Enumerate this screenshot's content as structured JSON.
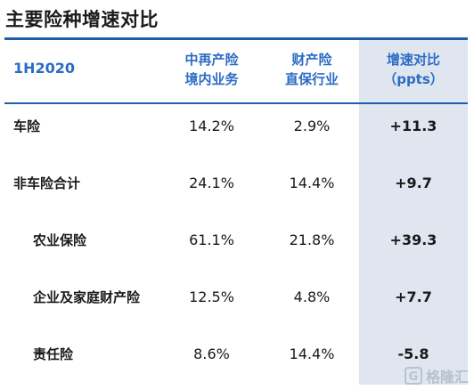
{
  "title": "主要险种增速对比",
  "header": {
    "period": "1H2020",
    "col1_line1": "中再产险",
    "col1_line2": "境内业务",
    "col2_line1": "财产险",
    "col2_line2": "直保行业",
    "col3_line1": "增速对比",
    "col3_line2": "（ppts）"
  },
  "rows": [
    {
      "label": "车险",
      "v1": "14.2%",
      "v2": "2.9%",
      "v3": "+11.3"
    },
    {
      "label": "非车险合计",
      "v1": "24.1%",
      "v2": "14.4%",
      "v3": "+9.7"
    },
    {
      "label": "农业保险",
      "v1": "61.1%",
      "v2": "21.8%",
      "v3": "+39.3"
    },
    {
      "label": "企业及家庭财产险",
      "v1": "12.5%",
      "v2": "4.8%",
      "v3": "+7.7"
    },
    {
      "label": "责任险",
      "v1": "8.6%",
      "v2": "14.4%",
      "v3": "-5.8"
    }
  ],
  "watermark": {
    "icon_letter": "G",
    "text": "格隆汇"
  }
}
